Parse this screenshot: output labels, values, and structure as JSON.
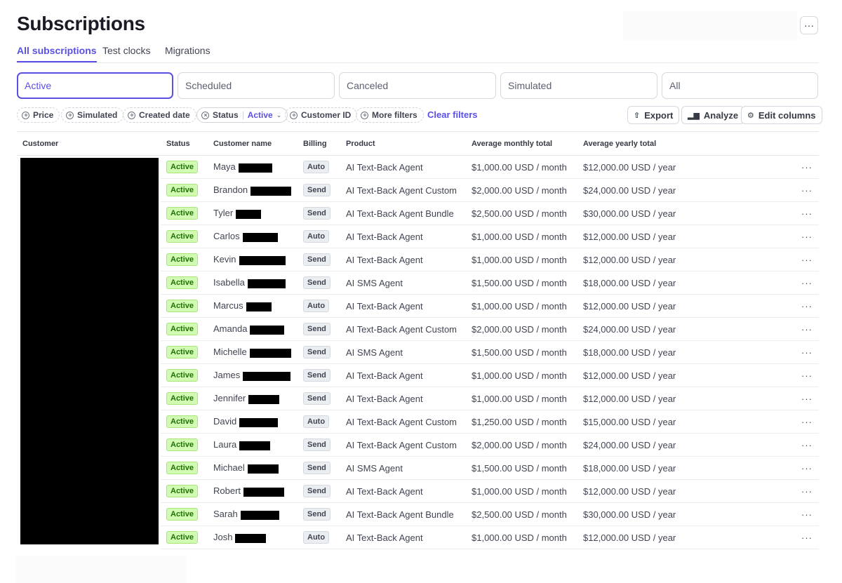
{
  "page": {
    "title": "Subscriptions"
  },
  "header": {
    "more_icon": "ellipsis-icon",
    "more_label": "···"
  },
  "tabs": [
    {
      "label": "All subscriptions",
      "active": true
    },
    {
      "label": "Test clocks",
      "active": false
    },
    {
      "label": "Migrations",
      "active": false
    }
  ],
  "segments": [
    {
      "label": "Active",
      "active": true
    },
    {
      "label": "Scheduled",
      "active": false
    },
    {
      "label": "Canceled",
      "active": false
    },
    {
      "label": "Simulated",
      "active": false
    },
    {
      "label": "All",
      "active": false
    }
  ],
  "filters": {
    "price": "Price",
    "simulated": "Simulated",
    "created_date": "Created date",
    "status_label": "Status",
    "status_value": "Active",
    "customer_id": "Customer ID",
    "more_filters": "More filters",
    "clear": "Clear filters"
  },
  "actions": {
    "export": "Export",
    "analyze": "Analyze",
    "edit_columns": "Edit columns"
  },
  "colors": {
    "accent": "#5a50e6",
    "active_badge_bg": "#d1fab3",
    "active_badge_text": "#217005"
  },
  "table": {
    "columns": [
      "Customer",
      "Status",
      "Customer name",
      "Billing",
      "Product",
      "Average monthly total",
      "Average yearly total"
    ],
    "rows": [
      {
        "status": "Active",
        "first_name": "Maya",
        "billing": "Auto",
        "product": "AI Text-Back Agent",
        "monthly": "$1,000.00 USD / month",
        "yearly": "$12,000.00 USD / year"
      },
      {
        "status": "Active",
        "first_name": "Brandon",
        "billing": "Send",
        "product": "AI Text-Back Agent Custom",
        "monthly": "$2,000.00 USD / month",
        "yearly": "$24,000.00 USD / year"
      },
      {
        "status": "Active",
        "first_name": "Tyler",
        "billing": "Send",
        "product": "AI Text-Back Agent Bundle",
        "monthly": "$2,500.00 USD / month",
        "yearly": "$30,000.00 USD / year"
      },
      {
        "status": "Active",
        "first_name": "Carlos",
        "billing": "Auto",
        "product": "AI Text-Back Agent",
        "monthly": "$1,000.00 USD / month",
        "yearly": "$12,000.00 USD / year"
      },
      {
        "status": "Active",
        "first_name": "Kevin",
        "billing": "Send",
        "product": "AI Text-Back Agent",
        "monthly": "$1,000.00 USD / month",
        "yearly": "$12,000.00 USD / year"
      },
      {
        "status": "Active",
        "first_name": "Isabella",
        "billing": "Send",
        "product": "AI SMS Agent",
        "monthly": "$1,500.00 USD / month",
        "yearly": "$18,000.00 USD / year"
      },
      {
        "status": "Active",
        "first_name": "Marcus",
        "billing": "Auto",
        "product": "AI Text-Back Agent",
        "monthly": "$1,000.00 USD / month",
        "yearly": "$12,000.00 USD / year"
      },
      {
        "status": "Active",
        "first_name": "Amanda",
        "billing": "Send",
        "product": "AI Text-Back Agent Custom",
        "monthly": "$2,000.00 USD / month",
        "yearly": "$24,000.00 USD / year"
      },
      {
        "status": "Active",
        "first_name": "Michelle",
        "billing": "Send",
        "product": "AI SMS Agent",
        "monthly": "$1,500.00 USD / month",
        "yearly": "$18,000.00 USD / year"
      },
      {
        "status": "Active",
        "first_name": "James",
        "billing": "Send",
        "product": "AI Text-Back Agent",
        "monthly": "$1,000.00 USD / month",
        "yearly": "$12,000.00 USD / year"
      },
      {
        "status": "Active",
        "first_name": "Jennifer",
        "billing": "Send",
        "product": "AI Text-Back Agent",
        "monthly": "$1,000.00 USD / month",
        "yearly": "$12,000.00 USD / year"
      },
      {
        "status": "Active",
        "first_name": "David",
        "billing": "Auto",
        "product": "AI Text-Back Agent Custom",
        "monthly": "$1,250.00 USD / month",
        "yearly": "$15,000.00 USD / year"
      },
      {
        "status": "Active",
        "first_name": "Laura",
        "billing": "Send",
        "product": "AI Text-Back Agent Custom",
        "monthly": "$2,000.00 USD / month",
        "yearly": "$24,000.00 USD / year"
      },
      {
        "status": "Active",
        "first_name": "Michael",
        "billing": "Send",
        "product": "AI SMS Agent",
        "monthly": "$1,500.00 USD / month",
        "yearly": "$18,000.00 USD / year"
      },
      {
        "status": "Active",
        "first_name": "Robert",
        "billing": "Send",
        "product": "AI Text-Back Agent",
        "monthly": "$1,000.00 USD / month",
        "yearly": "$12,000.00 USD / year"
      },
      {
        "status": "Active",
        "first_name": "Sarah",
        "billing": "Send",
        "product": "AI Text-Back Agent Bundle",
        "monthly": "$2,500.00 USD / month",
        "yearly": "$30,000.00 USD / year"
      },
      {
        "status": "Active",
        "first_name": "Josh",
        "billing": "Auto",
        "product": "AI Text-Back Agent",
        "monthly": "$1,000.00 USD / month",
        "yearly": "$12,000.00 USD / year"
      }
    ]
  }
}
